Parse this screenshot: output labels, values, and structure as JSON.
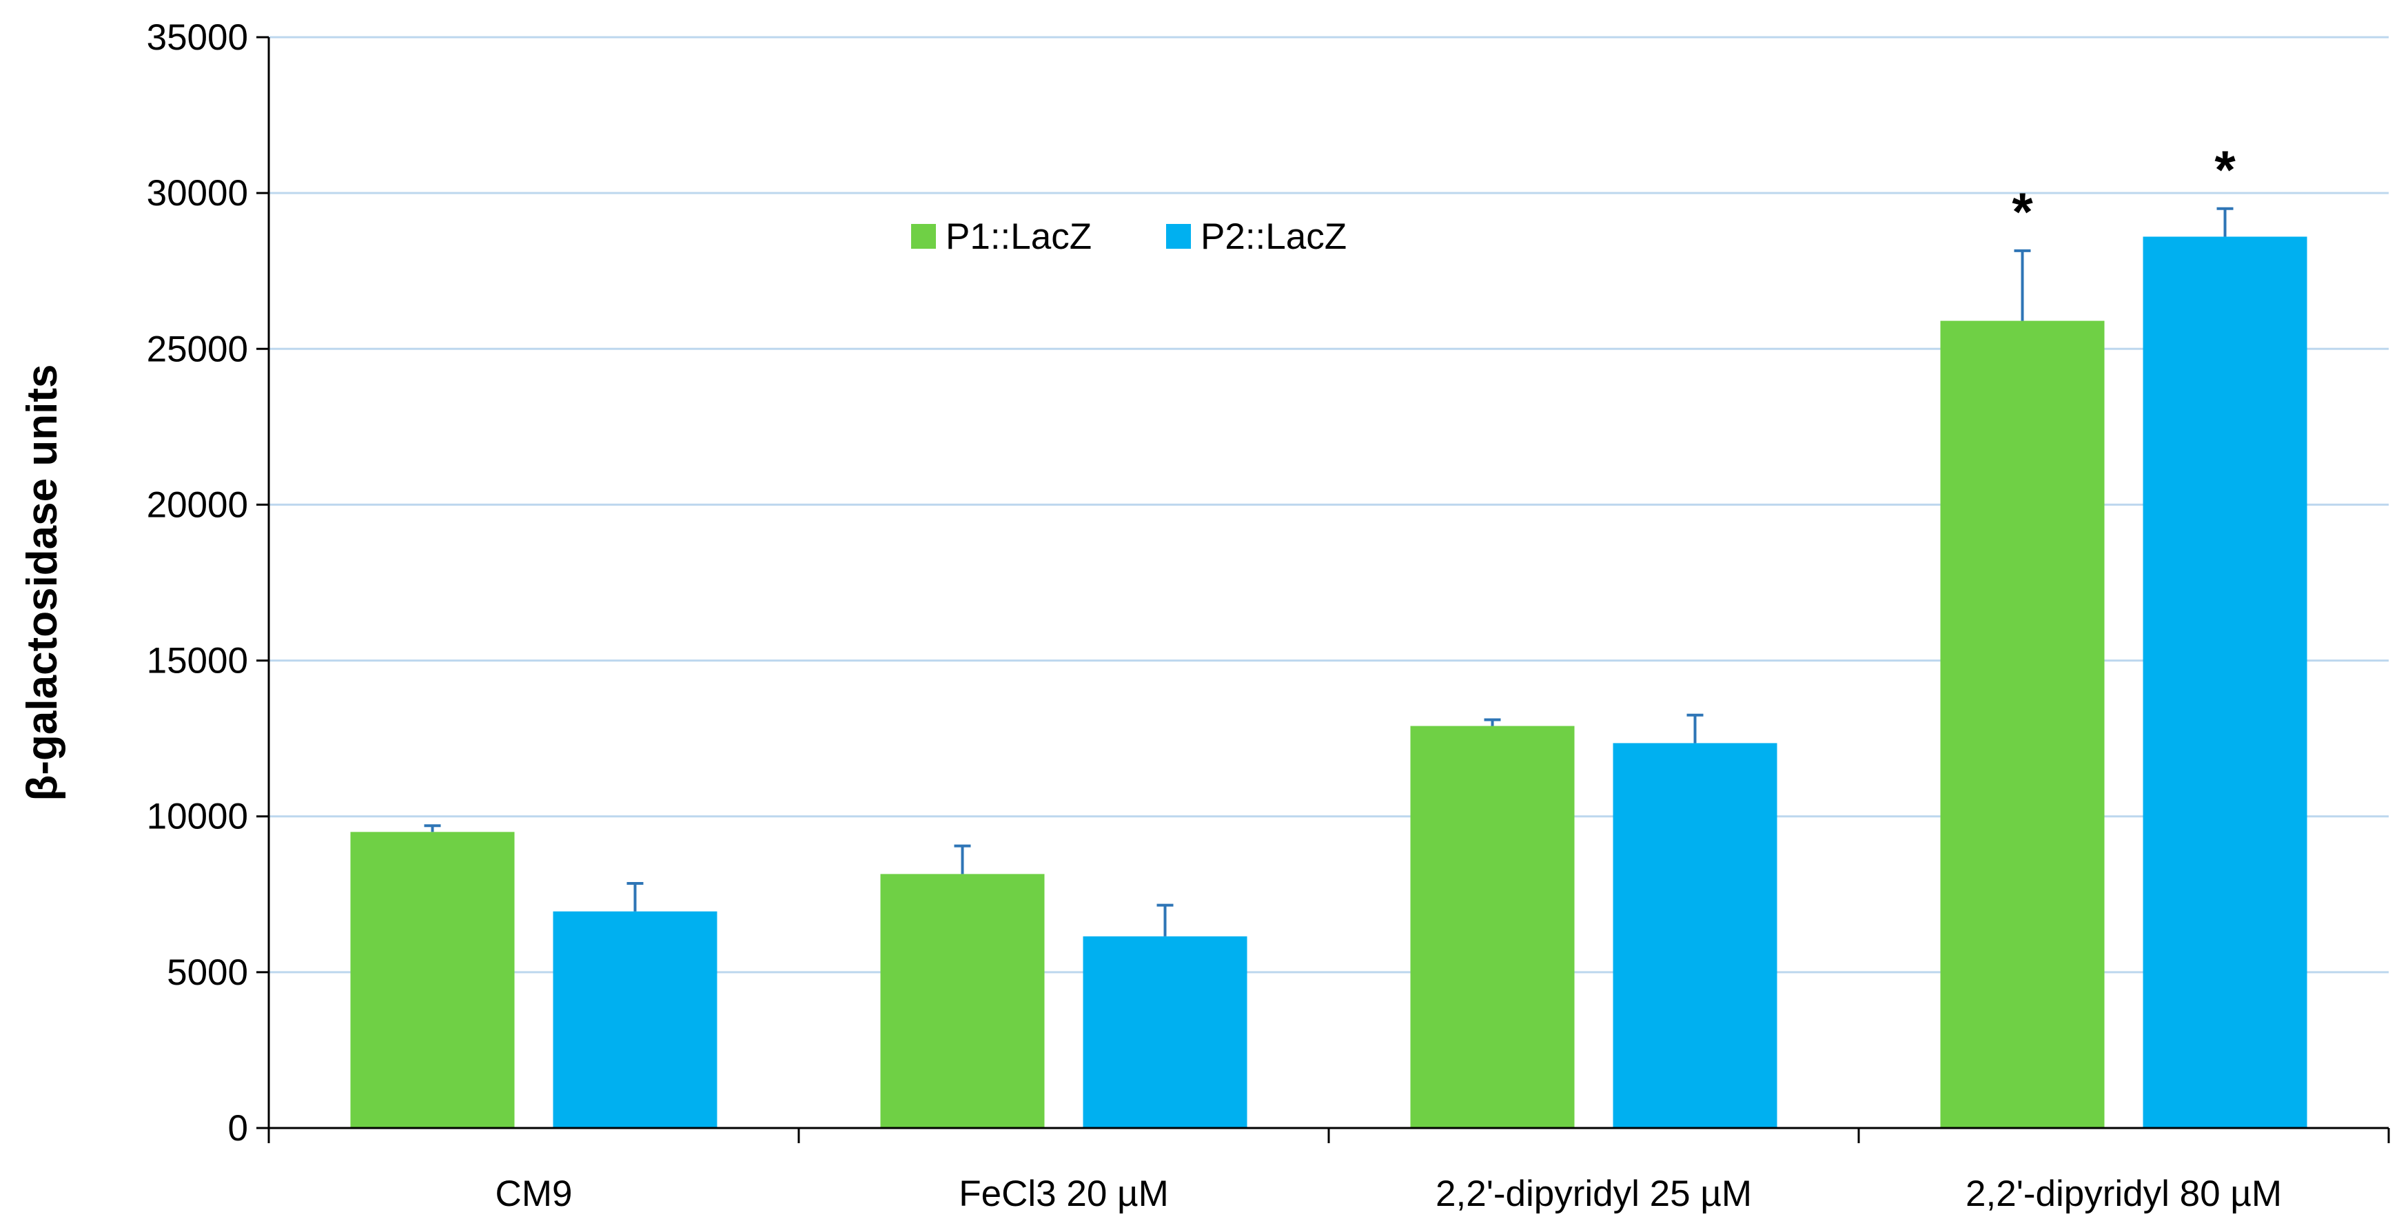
{
  "chart_data": {
    "type": "bar",
    "title": "",
    "xlabel": "",
    "ylabel": "β-galactosidase units",
    "ylim": [
      0,
      35000
    ],
    "yticks": [
      0,
      5000,
      10000,
      15000,
      20000,
      25000,
      30000,
      35000
    ],
    "grid": true,
    "legend_position": "top-left-center",
    "categories": [
      "CM9",
      "FeCl3 20 µM",
      "2,2'-dipyridyl 25 µM",
      "2,2'-dipyridyl 80 µM"
    ],
    "series": [
      {
        "name": "P1::LacZ",
        "color": "#6fd045",
        "values": [
          9500,
          8150,
          12900,
          25900
        ],
        "errors": [
          200,
          900,
          200,
          2250
        ],
        "annotations": [
          "",
          "",
          "",
          "*"
        ]
      },
      {
        "name": "P2::LacZ",
        "color": "#00b0f0",
        "values": [
          6950,
          6150,
          12350,
          28600
        ],
        "errors": [
          900,
          1000,
          900,
          900
        ],
        "annotations": [
          "",
          "",
          "",
          "*"
        ]
      }
    ],
    "error_bar_color": "#2e75b6",
    "grid_color": "#bdd7ee",
    "axis_color": "#000000"
  }
}
